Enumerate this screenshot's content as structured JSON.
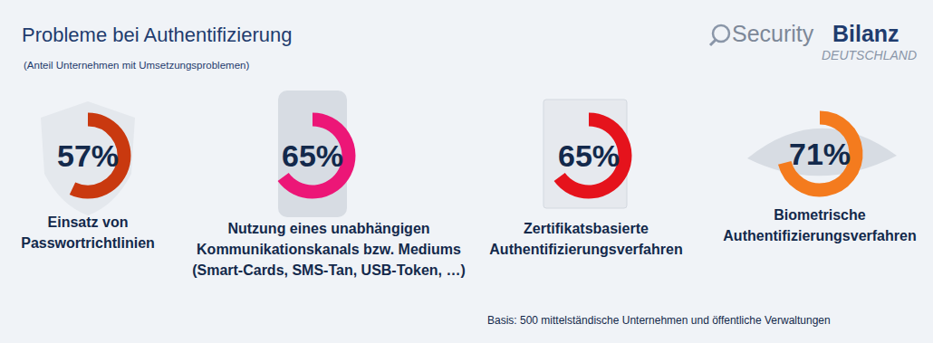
{
  "chart_data": {
    "type": "donut",
    "title": "Probleme bei Authentifizierung",
    "subtitle": "(Anteil Unternehmen mit Umsetzungsproblemen)",
    "categories": [
      "Einsatz von\nPasswortrichtlinien",
      "Nutzung eines unabhängigen\nKommunikationskanals bzw. Mediums\n(Smart-Cards, SMS-Tan, USB-Token, …)",
      "Zertifikatsbasierte\nAuthentifizierungsverfahren",
      "Biometrische\nAuthentifizierungsverfahren"
    ],
    "values": [
      57,
      65,
      65,
      71
    ],
    "value_labels": [
      "57%",
      "65%",
      "65%",
      "71%"
    ],
    "colors": [
      "#c9390f",
      "#ec1677",
      "#e5131c",
      "#f47b1e"
    ],
    "ylim": [
      0,
      100
    ],
    "data_labels": true,
    "tick_labels": false,
    "logo": [
      "Security",
      "Bilanz",
      "DEUTSCHLAND"
    ],
    "source": "Basis: 500 mittelständische Unternehmen und öffentliche Verwaltungen"
  }
}
